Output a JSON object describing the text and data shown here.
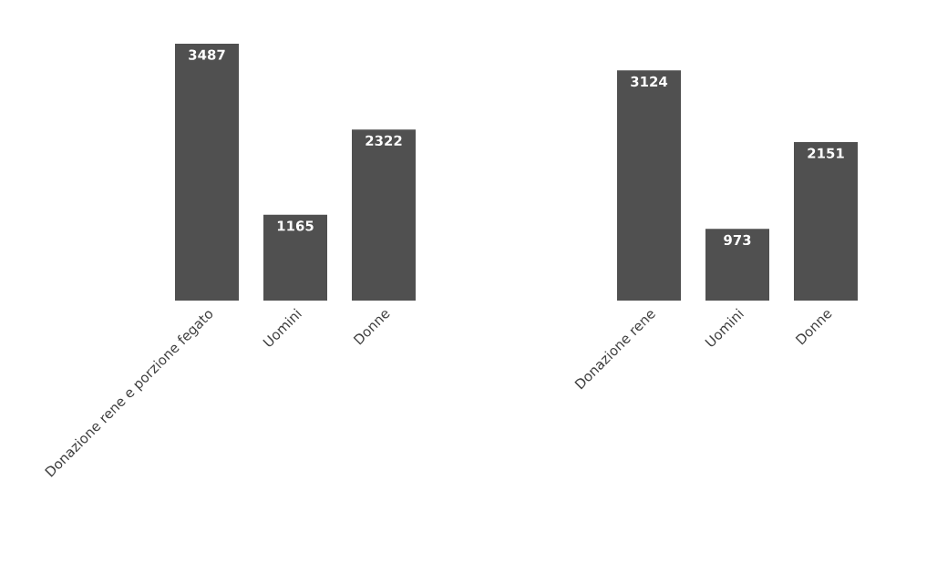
{
  "chart_data": {
    "type": "bar",
    "categories": [
      "Donazione rene e porzione fegato",
      "Uomini",
      "Donne",
      null,
      null,
      "Donazione rene",
      "Uomini",
      "Donne"
    ],
    "values": [
      3487,
      1165,
      2322,
      null,
      null,
      3124,
      973,
      2151
    ],
    "color": "#505050",
    "data_labels": true
  }
}
